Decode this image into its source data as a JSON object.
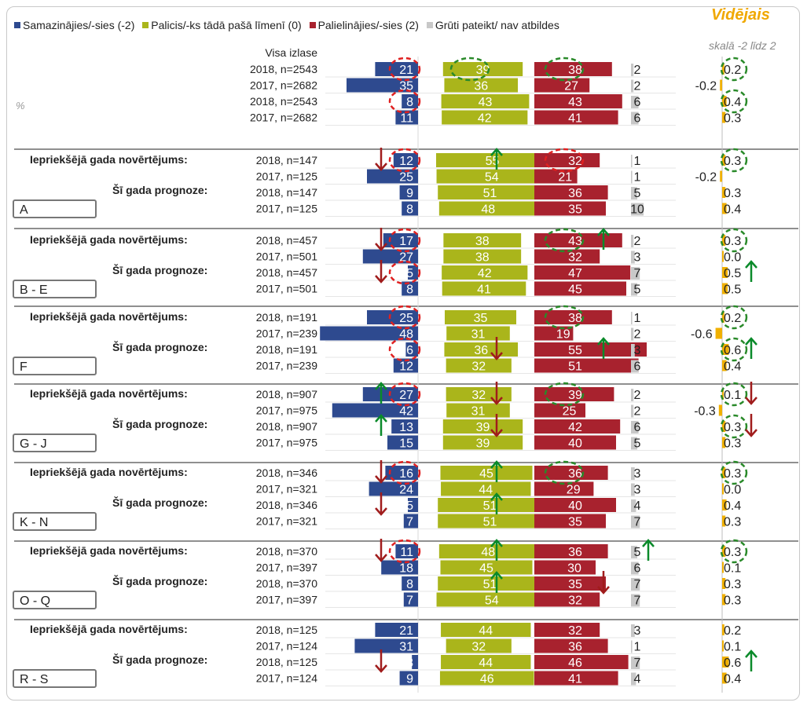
{
  "legend": [
    {
      "label": "Samazinājies/-sies (-2)",
      "color": "#2e4a8f"
    },
    {
      "label": "Palicis/-ks tādā pašā līmenī (0)",
      "color": "#aab51b"
    },
    {
      "label": "Palielinājies/-sies (2)",
      "color": "#a8222e"
    },
    {
      "label": "Grūti pateikt/ nav atbildes",
      "color": "#c8c8c8"
    }
  ],
  "avg_title": "Vidējais",
  "avg_subtitle": "skalā -2 līdz 2",
  "pct_label": "%",
  "row_label_prev": "Iepriekšējā  gada novērtējums:",
  "row_label_fore": "Šī gada prognoze:",
  "colors": {
    "decreased": "#2e4a8f",
    "same": "#aab51b",
    "increased": "#a8222e",
    "unknown": "#c8c8c8",
    "average": "#f0b000",
    "red_marker": "#e02020",
    "green_marker": "#2a8a2a",
    "red_arrow": "#a01c1c",
    "green_arrow": "#0a8a2a"
  },
  "chart_data": {
    "type": "bar",
    "stacked": false,
    "series_names": [
      "Samazinājies/-sies (-2)",
      "Palicis/-ks tādā pašā līmenī (0)",
      "Palielinājies/-sies (2)",
      "Grūti pateikt/ nav atbildes",
      "Vidējais"
    ],
    "sections": [
      {
        "name": "Visa izlase",
        "box": "",
        "rows": [
          {
            "label": "2018, n=2543",
            "dec": 21,
            "same": 39,
            "inc": 38,
            "na": 2,
            "avg": "0.2"
          },
          {
            "label": "2017, n=2682",
            "dec": 35,
            "same": 36,
            "inc": 27,
            "na": 2,
            "avg": "-0.2"
          },
          {
            "label": "2018, n=2543",
            "dec": 8,
            "same": 43,
            "inc": 43,
            "na": 6,
            "avg": "0.4"
          },
          {
            "label": "2017, n=2682",
            "dec": 11,
            "same": 42,
            "inc": 41,
            "na": 6,
            "avg": "0.3"
          }
        ]
      },
      {
        "name": "A",
        "box": "A",
        "rows": [
          {
            "label": "2018, n=147",
            "dec": 12,
            "same": 55,
            "inc": 32,
            "na": 1,
            "avg": "0.3"
          },
          {
            "label": "2017, n=125",
            "dec": 25,
            "same": 54,
            "inc": 21,
            "na": 1,
            "avg": "-0.2"
          },
          {
            "label": "2018, n=147",
            "dec": 9,
            "same": 51,
            "inc": 36,
            "na": 5,
            "avg": "0.3"
          },
          {
            "label": "2017, n=125",
            "dec": 8,
            "same": 48,
            "inc": 35,
            "na": 10,
            "avg": "0.4"
          }
        ]
      },
      {
        "name": "B - E",
        "box": "B - E",
        "rows": [
          {
            "label": "2018, n=457",
            "dec": 17,
            "same": 38,
            "inc": 43,
            "na": 2,
            "avg": "0.3"
          },
          {
            "label": "2017, n=501",
            "dec": 27,
            "same": 38,
            "inc": 32,
            "na": 3,
            "avg": "0.0"
          },
          {
            "label": "2018, n=457",
            "dec": 5,
            "same": 42,
            "inc": 47,
            "na": 7,
            "avg": "0.5"
          },
          {
            "label": "2017, n=501",
            "dec": 8,
            "same": 41,
            "inc": 45,
            "na": 5,
            "avg": "0.5"
          }
        ]
      },
      {
        "name": "F",
        "box": "F",
        "rows": [
          {
            "label": "2018, n=191",
            "dec": 25,
            "same": 35,
            "inc": 38,
            "na": 1,
            "avg": "0.2"
          },
          {
            "label": "2017, n=239",
            "dec": 48,
            "same": 31,
            "inc": 19,
            "na": 2,
            "avg": "-0.6"
          },
          {
            "label": "2018, n=191",
            "dec": 6,
            "same": 36,
            "inc": 55,
            "na": 3,
            "avg": "0.6"
          },
          {
            "label": "2017, n=239",
            "dec": 12,
            "same": 32,
            "inc": 51,
            "na": 6,
            "avg": "0.4"
          }
        ]
      },
      {
        "name": "G - J",
        "box": "G - J",
        "rows": [
          {
            "label": "2018, n=907",
            "dec": 27,
            "same": 32,
            "inc": 39,
            "na": 2,
            "avg": "0.1"
          },
          {
            "label": "2017, n=975",
            "dec": 42,
            "same": 31,
            "inc": 25,
            "na": 2,
            "avg": "-0.3"
          },
          {
            "label": "2018, n=907",
            "dec": 13,
            "same": 39,
            "inc": 42,
            "na": 6,
            "avg": "0.3"
          },
          {
            "label": "2017, n=975",
            "dec": 15,
            "same": 39,
            "inc": 40,
            "na": 5,
            "avg": "0.3"
          }
        ]
      },
      {
        "name": "K - N",
        "box": "K - N",
        "rows": [
          {
            "label": "2018, n=346",
            "dec": 16,
            "same": 45,
            "inc": 36,
            "na": 3,
            "avg": "0.3"
          },
          {
            "label": "2017, n=321",
            "dec": 24,
            "same": 44,
            "inc": 29,
            "na": 3,
            "avg": "0.0"
          },
          {
            "label": "2018, n=346",
            "dec": 5,
            "same": 51,
            "inc": 40,
            "na": 4,
            "avg": "0.4"
          },
          {
            "label": "2017, n=321",
            "dec": 7,
            "same": 51,
            "inc": 35,
            "na": 7,
            "avg": "0.3"
          }
        ]
      },
      {
        "name": "O - Q",
        "box": "O - Q",
        "rows": [
          {
            "label": "2018, n=370",
            "dec": 11,
            "same": 48,
            "inc": 36,
            "na": 5,
            "avg": "0.3"
          },
          {
            "label": "2017, n=397",
            "dec": 18,
            "same": 45,
            "inc": 30,
            "na": 6,
            "avg": "0.1"
          },
          {
            "label": "2018, n=370",
            "dec": 8,
            "same": 51,
            "inc": 35,
            "na": 7,
            "avg": "0.3"
          },
          {
            "label": "2017, n=397",
            "dec": 7,
            "same": 54,
            "inc": 32,
            "na": 7,
            "avg": "0.3"
          }
        ]
      },
      {
        "name": "R - S",
        "box": "R - S",
        "rows": [
          {
            "label": "2018, n=125",
            "dec": 21,
            "same": 44,
            "inc": 32,
            "na": 3,
            "avg": "0.2"
          },
          {
            "label": "2017, n=124",
            "dec": 31,
            "same": 32,
            "inc": 36,
            "na": 1,
            "avg": "0.1"
          },
          {
            "label": "2018, n=125",
            "dec": 3,
            "same": 44,
            "inc": 46,
            "na": 7,
            "avg": "0.6"
          },
          {
            "label": "2017, n=124",
            "dec": 9,
            "same": 46,
            "inc": 41,
            "na": 4,
            "avg": "0.4"
          }
        ]
      }
    ],
    "markers": [
      {
        "kind": "red-circle",
        "section": 0,
        "row": 0,
        "col": "dec"
      },
      {
        "kind": "red-circle",
        "section": 0,
        "row": 2,
        "col": "dec"
      },
      {
        "kind": "green-circle",
        "section": 0,
        "row": 0,
        "col": "same"
      },
      {
        "kind": "green-circle",
        "section": 0,
        "row": 0,
        "col": "inc"
      },
      {
        "kind": "green-circle",
        "section": 0,
        "row": 0,
        "col": "avg"
      },
      {
        "kind": "green-circle",
        "section": 0,
        "row": 2,
        "col": "avg"
      },
      {
        "kind": "red-circle",
        "section": 1,
        "row": 0,
        "col": "dec"
      },
      {
        "kind": "red-arrow-down",
        "section": 1,
        "row": 0,
        "col": "dec"
      },
      {
        "kind": "green-arrow-up",
        "section": 1,
        "row": 0,
        "col": "same"
      },
      {
        "kind": "red-circle",
        "section": 1,
        "row": 0,
        "col": "inc"
      },
      {
        "kind": "green-circle",
        "section": 1,
        "row": 0,
        "col": "avg"
      },
      {
        "kind": "red-circle",
        "section": 2,
        "row": 0,
        "col": "dec"
      },
      {
        "kind": "red-arrow-down",
        "section": 2,
        "row": 0,
        "col": "dec"
      },
      {
        "kind": "red-circle",
        "section": 2,
        "row": 2,
        "col": "dec"
      },
      {
        "kind": "red-arrow-down",
        "section": 2,
        "row": 2,
        "col": "dec"
      },
      {
        "kind": "green-circle",
        "section": 2,
        "row": 0,
        "col": "inc"
      },
      {
        "kind": "green-arrow-up",
        "section": 2,
        "row": 0,
        "col": "inc"
      },
      {
        "kind": "green-circle",
        "section": 2,
        "row": 0,
        "col": "avg"
      },
      {
        "kind": "green-arrow-up",
        "section": 2,
        "row": 2,
        "col": "avg"
      },
      {
        "kind": "red-circle",
        "section": 3,
        "row": 0,
        "col": "dec"
      },
      {
        "kind": "red-circle",
        "section": 3,
        "row": 2,
        "col": "dec"
      },
      {
        "kind": "red-arrow-down",
        "section": 3,
        "row": 2,
        "col": "same"
      },
      {
        "kind": "green-circle",
        "section": 3,
        "row": 0,
        "col": "inc"
      },
      {
        "kind": "green-arrow-up",
        "section": 3,
        "row": 2,
        "col": "inc"
      },
      {
        "kind": "green-circle",
        "section": 3,
        "row": 0,
        "col": "avg"
      },
      {
        "kind": "green-circle",
        "section": 3,
        "row": 2,
        "col": "avg"
      },
      {
        "kind": "green-arrow-up",
        "section": 3,
        "row": 2,
        "col": "avg"
      },
      {
        "kind": "red-circle",
        "section": 4,
        "row": 0,
        "col": "dec"
      },
      {
        "kind": "green-arrow-up",
        "section": 4,
        "row": 0,
        "col": "dec"
      },
      {
        "kind": "green-arrow-up",
        "section": 4,
        "row": 2,
        "col": "dec"
      },
      {
        "kind": "red-arrow-down",
        "section": 4,
        "row": 0,
        "col": "same"
      },
      {
        "kind": "red-arrow-down",
        "section": 4,
        "row": 2,
        "col": "same"
      },
      {
        "kind": "green-circle",
        "section": 4,
        "row": 0,
        "col": "inc"
      },
      {
        "kind": "green-circle",
        "section": 4,
        "row": 0,
        "col": "avg"
      },
      {
        "kind": "red-arrow-down",
        "section": 4,
        "row": 0,
        "col": "avg"
      },
      {
        "kind": "green-circle",
        "section": 4,
        "row": 2,
        "col": "avg"
      },
      {
        "kind": "red-arrow-down",
        "section": 4,
        "row": 2,
        "col": "avg"
      },
      {
        "kind": "red-circle",
        "section": 5,
        "row": 0,
        "col": "dec"
      },
      {
        "kind": "red-arrow-down",
        "section": 5,
        "row": 0,
        "col": "dec"
      },
      {
        "kind": "red-arrow-down",
        "section": 5,
        "row": 2,
        "col": "dec"
      },
      {
        "kind": "green-arrow-up",
        "section": 5,
        "row": 0,
        "col": "same"
      },
      {
        "kind": "green-arrow-up",
        "section": 5,
        "row": 2,
        "col": "same"
      },
      {
        "kind": "green-circle",
        "section": 5,
        "row": 0,
        "col": "inc"
      },
      {
        "kind": "green-circle",
        "section": 5,
        "row": 0,
        "col": "avg"
      },
      {
        "kind": "red-circle",
        "section": 6,
        "row": 0,
        "col": "dec"
      },
      {
        "kind": "red-arrow-down",
        "section": 6,
        "row": 0,
        "col": "dec"
      },
      {
        "kind": "green-arrow-up",
        "section": 6,
        "row": 0,
        "col": "same"
      },
      {
        "kind": "green-arrow-up",
        "section": 6,
        "row": 2,
        "col": "same"
      },
      {
        "kind": "red-arrow-down",
        "section": 6,
        "row": 2,
        "col": "inc"
      },
      {
        "kind": "green-arrow-up",
        "section": 6,
        "row": 0,
        "col": "na"
      },
      {
        "kind": "green-circle",
        "section": 6,
        "row": 0,
        "col": "avg"
      },
      {
        "kind": "red-arrow-down",
        "section": 7,
        "row": 2,
        "col": "dec"
      },
      {
        "kind": "green-arrow-up",
        "section": 7,
        "row": 2,
        "col": "avg"
      }
    ]
  }
}
